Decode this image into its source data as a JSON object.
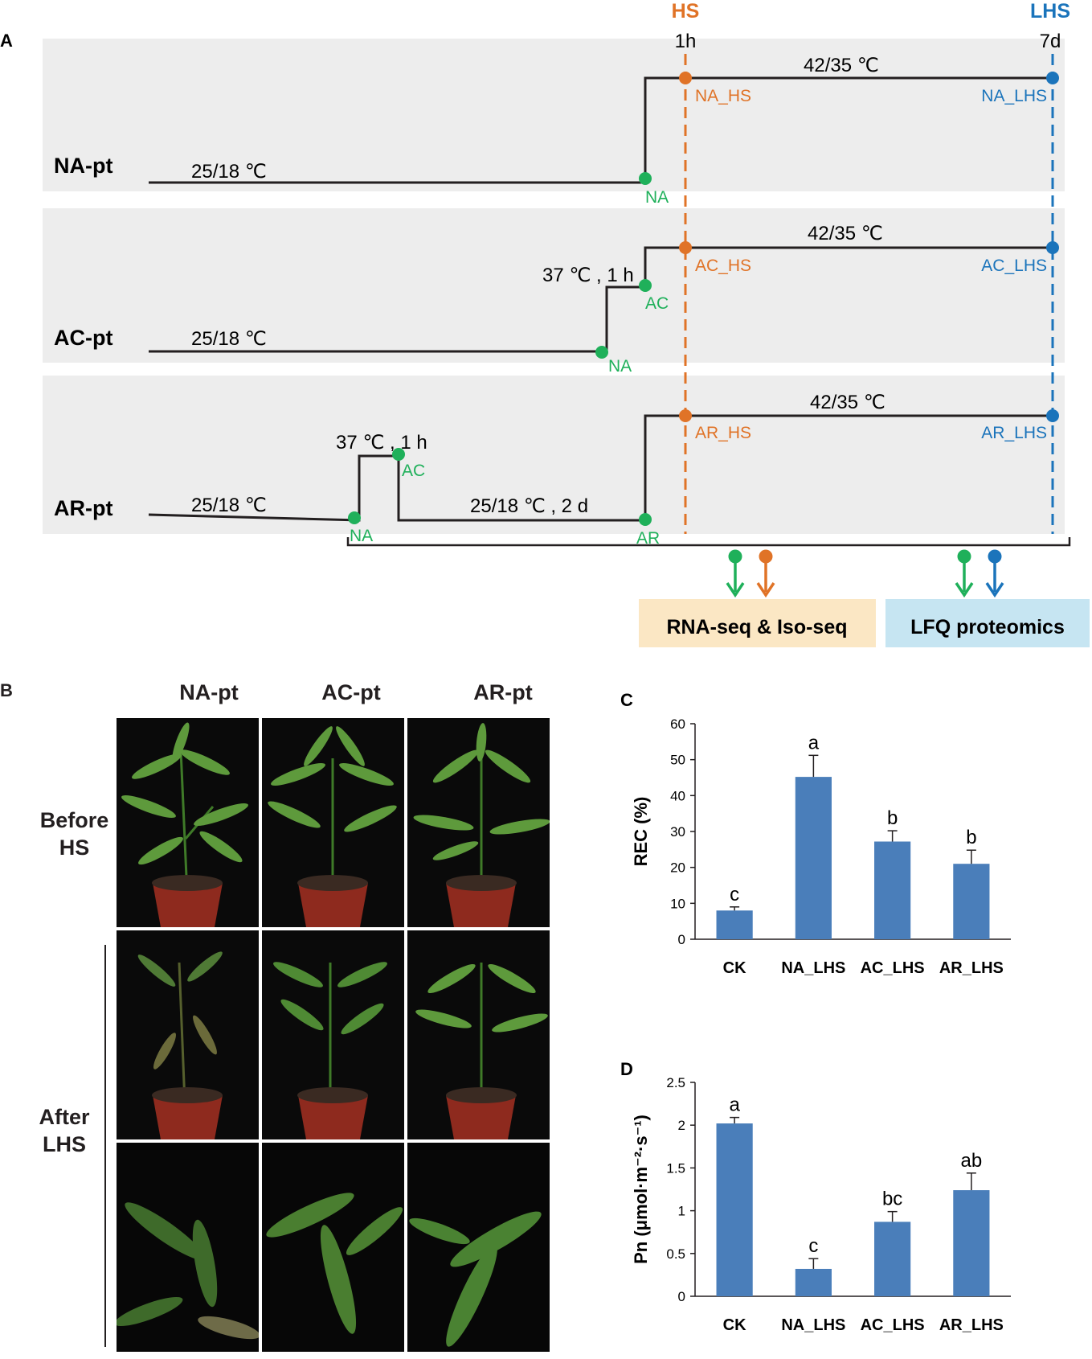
{
  "panelA": {
    "letter": "A",
    "hs_label": "HS",
    "lhs_label": "LHS",
    "time_1h": "1h",
    "time_7d": "7d",
    "rows": [
      {
        "name": "NA-pt",
        "base_temp": "25/18 ℃",
        "heat_temp": "42/35  ℃",
        "points": {
          "na": "NA",
          "hs": "NA_HS",
          "lhs": "NA_LHS"
        }
      },
      {
        "name": "AC-pt",
        "base_temp": "25/18 ℃",
        "accl_temp": "37 ℃ , 1 h",
        "heat_temp": "42/35  ℃",
        "points": {
          "na": "NA",
          "ac": "AC",
          "hs": "AC_HS",
          "lhs": "AC_LHS"
        }
      },
      {
        "name": "AR-pt",
        "base_temp": "25/18 ℃",
        "accl_temp": "37 ℃ , 1 h",
        "recovery_temp": "25/18 ℃ , 2 d",
        "heat_temp": "42/35  ℃",
        "points": {
          "na": "NA",
          "ac": "AC",
          "ar": "AR",
          "hs": "AR_HS",
          "lhs": "AR_LHS"
        }
      }
    ],
    "boxes": {
      "rnaseq": "RNA-seq & Iso-seq",
      "proteomics": "LFQ proteomics"
    },
    "colors": {
      "green": "#1fb05a",
      "orange": "#e07327",
      "blue": "#1b74bb",
      "bg": "#ededed",
      "rnaseq_bg": "#fbe7c4",
      "proteomics_bg": "#c6e5f2"
    }
  },
  "panelB": {
    "letter": "B",
    "columns": [
      "NA-pt",
      "AC-pt",
      "AR-pt"
    ],
    "row_labels": {
      "before_1": "Before",
      "before_2": "HS",
      "after_1": "After",
      "after_2": "LHS"
    }
  },
  "panelC": {
    "letter": "C",
    "chart_data": {
      "type": "bar",
      "categories": [
        "CK",
        "NA_LHS",
        "AC_LHS",
        "AR_LHS"
      ],
      "values": [
        8,
        45.2,
        27.2,
        21
      ],
      "errors": [
        1,
        6,
        3,
        3.8
      ],
      "letters": [
        "c",
        "a",
        "b",
        "b"
      ],
      "ylabel": "REC (%)",
      "ylim": [
        0,
        60
      ],
      "yticks": [
        "0",
        "10",
        "20",
        "30",
        "40",
        "50",
        "60"
      ],
      "color": "#4a7eba"
    }
  },
  "panelD": {
    "letter": "D",
    "chart_data": {
      "type": "bar",
      "categories": [
        "CK",
        "NA_LHS",
        "AC_LHS",
        "AR_LHS"
      ],
      "values": [
        2.02,
        0.32,
        0.87,
        1.24
      ],
      "errors": [
        0.07,
        0.12,
        0.12,
        0.2
      ],
      "letters": [
        "a",
        "c",
        "bc",
        "ab"
      ],
      "ylabel": "Pn (μmol·m⁻²·s⁻¹)",
      "ylim": [
        0,
        2.5
      ],
      "yticks": [
        "0",
        "0.5",
        "1",
        "1.5",
        "2",
        "2.5"
      ],
      "color": "#4a7eba"
    }
  }
}
